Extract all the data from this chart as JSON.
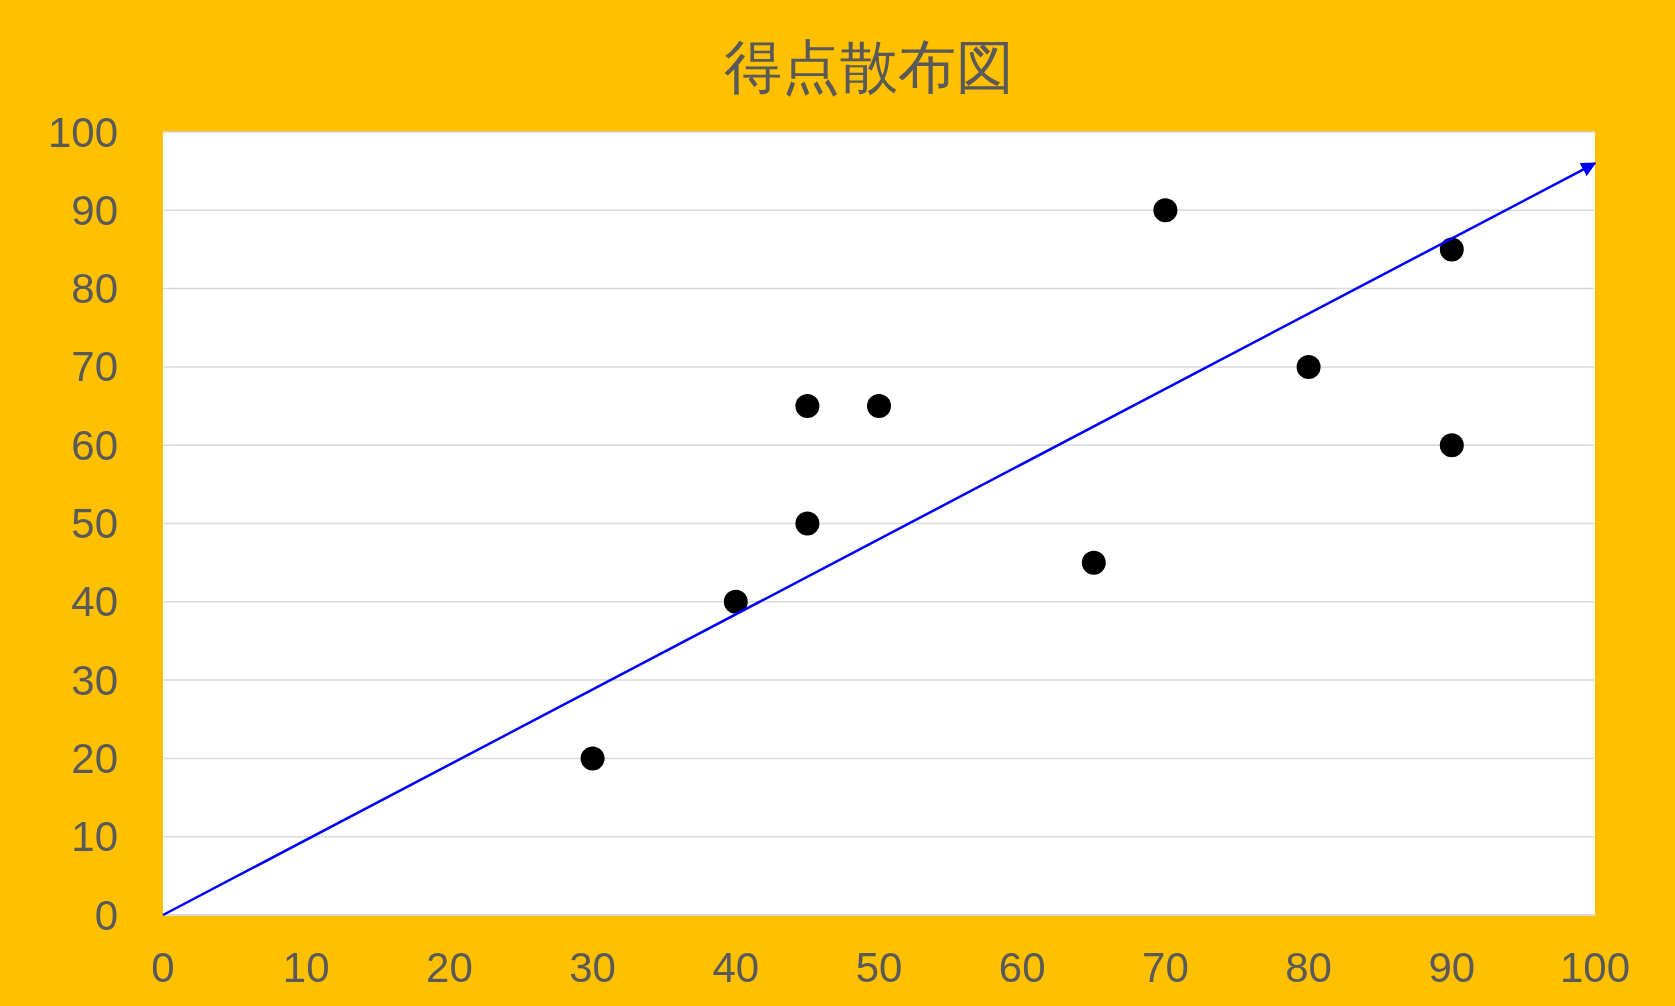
{
  "chart_data": {
    "type": "scatter",
    "title": "得点散布図",
    "xlim": [
      0,
      100
    ],
    "xticks": [
      0,
      10,
      20,
      30,
      40,
      50,
      60,
      70,
      80,
      90,
      100
    ],
    "ylim": [
      0,
      100
    ],
    "yticks": [
      0,
      10,
      20,
      30,
      40,
      50,
      60,
      70,
      80,
      90,
      100
    ],
    "grid": "y",
    "series": [
      {
        "type": "scatter",
        "color": "#000000",
        "marker": "circle",
        "x": [
          30,
          40,
          45,
          45,
          50,
          65,
          70,
          80,
          90,
          90
        ],
        "values": [
          20,
          40,
          65,
          50,
          65,
          45,
          90,
          70,
          85,
          60
        ]
      },
      {
        "type": "line",
        "color": "#0000ff",
        "marker": "none",
        "line_style": "solid",
        "x": [
          0,
          100
        ],
        "values": [
          0,
          96
        ]
      }
    ]
  }
}
